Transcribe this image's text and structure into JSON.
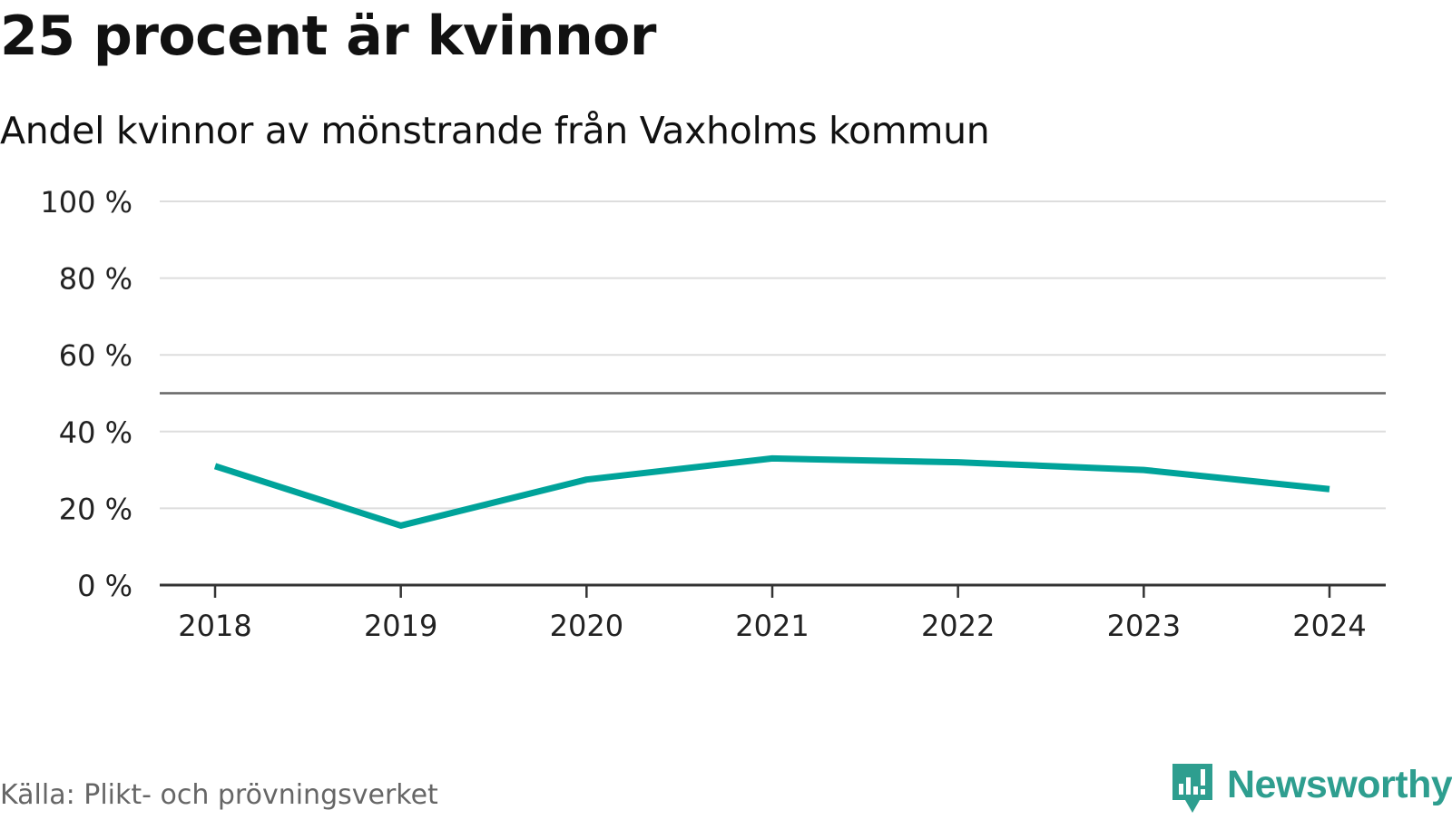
{
  "title": "25 procent är kvinnor",
  "subtitle": "Andel kvinnor av mönstrande från Vaxholms kommun",
  "source": "Källa: Plikt- och prövningsverket",
  "brand": {
    "name": "Newsworthy",
    "icon": "newsworthy-logo-icon",
    "color": "#2e9e8f"
  },
  "colors": {
    "line": "#00a39a",
    "reference_line": "#666666",
    "grid": "#dddddd",
    "axis": "#333333",
    "text": "#111111",
    "source_text": "#666666"
  },
  "chart_data": {
    "type": "line",
    "title": "25 procent är kvinnor",
    "subtitle": "Andel kvinnor av mönstrande från Vaxholms kommun",
    "xlabel": "",
    "ylabel": "",
    "categories": [
      "2018",
      "2019",
      "2020",
      "2021",
      "2022",
      "2023",
      "2024"
    ],
    "series": [
      {
        "name": "Andel kvinnor",
        "values": [
          31,
          15.5,
          27.5,
          33,
          32,
          30,
          25
        ]
      }
    ],
    "ylim": [
      0,
      100
    ],
    "yticks": [
      0,
      20,
      40,
      60,
      80,
      100
    ],
    "ytick_labels": [
      "0 %",
      "20 %",
      "40 %",
      "60 %",
      "80 %",
      "100 %"
    ],
    "reference_line": 50,
    "grid": true,
    "legend": "none"
  }
}
